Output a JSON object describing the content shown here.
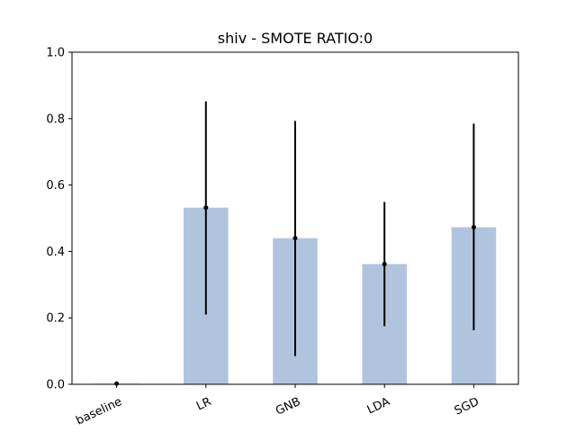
{
  "chart_data": {
    "type": "bar",
    "title": "shiv - SMOTE RATIO:0",
    "xlabel": "",
    "ylabel": "",
    "categories": [
      "baseline",
      "LR",
      "GNB",
      "LDA",
      "SGD"
    ],
    "values": [
      0.002,
      0.532,
      0.44,
      0.362,
      0.473
    ],
    "error_low": [
      0.0,
      0.21,
      0.085,
      0.175,
      0.163
    ],
    "error_high": [
      0.004,
      0.852,
      0.793,
      0.549,
      0.785
    ],
    "ylim": [
      0,
      1.0
    ],
    "yticks": [
      "0.0",
      "0.2",
      "0.4",
      "0.6",
      "0.8",
      "1.0"
    ],
    "bar_color": "#b0c4de",
    "error_color": "#000000",
    "grid": false,
    "legend": "none"
  }
}
